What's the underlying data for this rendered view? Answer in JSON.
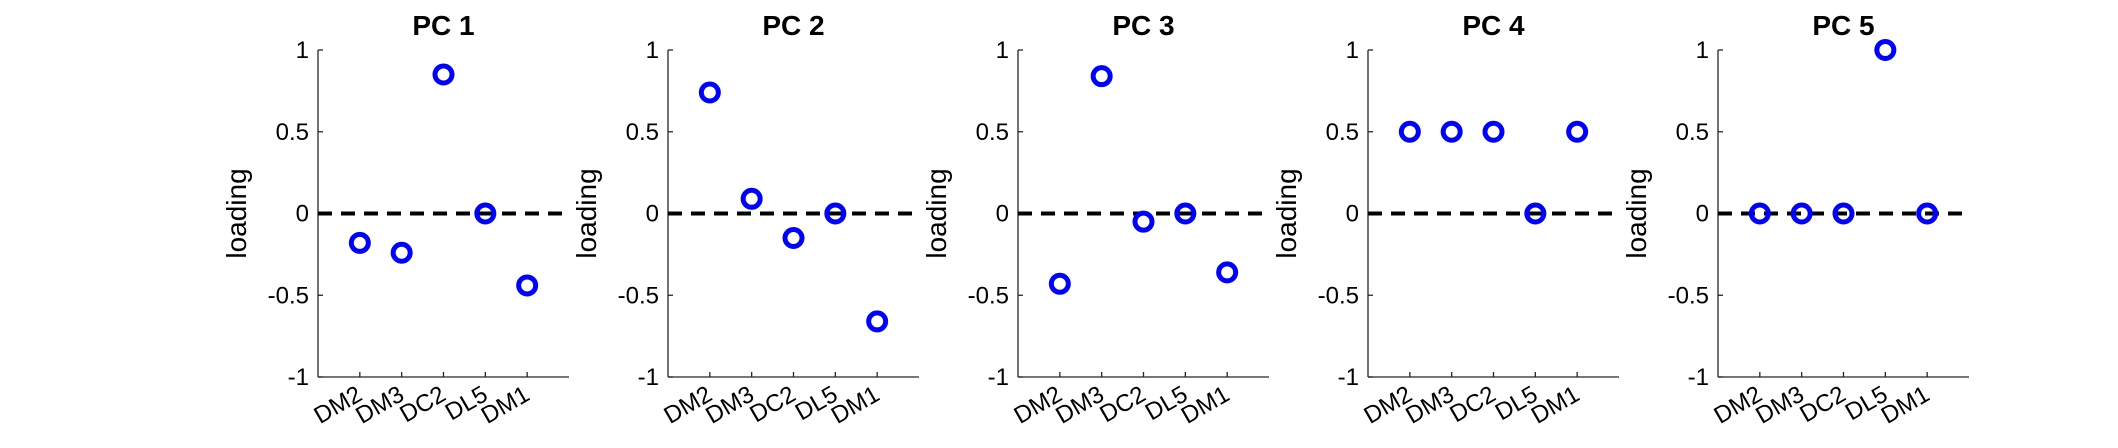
{
  "chart_data": [
    {
      "type": "scatter",
      "title": "PC 1",
      "categories": [
        "DM2",
        "DM3",
        "DC2",
        "DL5",
        "DM1"
      ],
      "values": [
        -0.18,
        -0.24,
        0.85,
        0.0,
        -0.44
      ],
      "ylabel": "loading",
      "xlabel": "",
      "ylim": [
        -1,
        1
      ],
      "yticks": [
        "-1",
        "-0.5",
        "0",
        "0.5",
        "1"
      ],
      "reference_line": {
        "y": 0,
        "style": "dashed",
        "color": "#000000"
      },
      "marker": {
        "shape": "circle",
        "color": "#0000ff",
        "fill": "none"
      },
      "grid": false
    },
    {
      "type": "scatter",
      "title": "PC 2",
      "categories": [
        "DM2",
        "DM3",
        "DC2",
        "DL5",
        "DM1"
      ],
      "values": [
        0.74,
        0.09,
        -0.15,
        0.0,
        -0.66
      ],
      "ylabel": "loading",
      "xlabel": "",
      "ylim": [
        -1,
        1
      ],
      "yticks": [
        "-1",
        "-0.5",
        "0",
        "0.5",
        "1"
      ],
      "reference_line": {
        "y": 0,
        "style": "dashed",
        "color": "#000000"
      },
      "marker": {
        "shape": "circle",
        "color": "#0000ff",
        "fill": "none"
      },
      "grid": false
    },
    {
      "type": "scatter",
      "title": "PC 3",
      "categories": [
        "DM2",
        "DM3",
        "DC2",
        "DL5",
        "DM1"
      ],
      "values": [
        -0.43,
        0.84,
        -0.05,
        0.0,
        -0.36
      ],
      "ylabel": "loading",
      "xlabel": "",
      "ylim": [
        -1,
        1
      ],
      "yticks": [
        "-1",
        "-0.5",
        "0",
        "0.5",
        "1"
      ],
      "reference_line": {
        "y": 0,
        "style": "dashed",
        "color": "#000000"
      },
      "marker": {
        "shape": "circle",
        "color": "#0000ff",
        "fill": "none"
      },
      "grid": false
    },
    {
      "type": "scatter",
      "title": "PC 4",
      "categories": [
        "DM2",
        "DM3",
        "DC2",
        "DL5",
        "DM1"
      ],
      "values": [
        0.5,
        0.5,
        0.5,
        0.0,
        0.5
      ],
      "ylabel": "loading",
      "xlabel": "",
      "ylim": [
        -1,
        1
      ],
      "yticks": [
        "-1",
        "-0.5",
        "0",
        "0.5",
        "1"
      ],
      "reference_line": {
        "y": 0,
        "style": "dashed",
        "color": "#000000"
      },
      "marker": {
        "shape": "circle",
        "color": "#0000ff",
        "fill": "none"
      },
      "grid": false
    },
    {
      "type": "scatter",
      "title": "PC 5",
      "categories": [
        "DM2",
        "DM3",
        "DC2",
        "DL5",
        "DM1"
      ],
      "values": [
        0.0,
        0.0,
        0.0,
        1.0,
        0.0
      ],
      "ylabel": "loading",
      "xlabel": "",
      "ylim": [
        -1,
        1
      ],
      "yticks": [
        "-1",
        "-0.5",
        "0",
        "0.5",
        "1"
      ],
      "reference_line": {
        "y": 0,
        "style": "dashed",
        "color": "#000000"
      },
      "marker": {
        "shape": "circle",
        "color": "#0000ff",
        "fill": "none"
      },
      "grid": false
    }
  ]
}
